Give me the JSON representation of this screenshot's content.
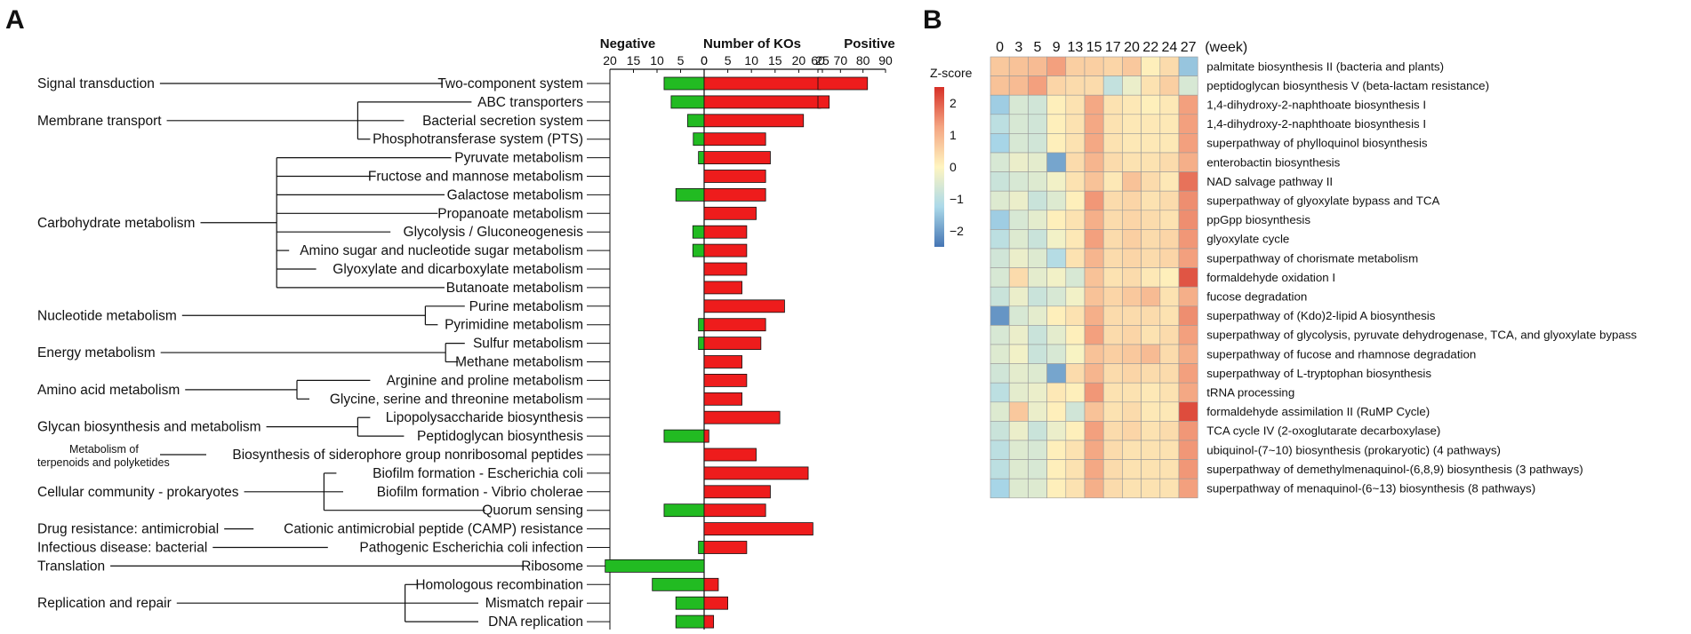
{
  "panel_a": {
    "letter": "A",
    "negative_label": "Negative",
    "middle_label": "Number of KOs",
    "positive_label": "Positive",
    "colors": {
      "negative": "#22bb22",
      "positive": "#ee1c1c",
      "negative_text": "#2aa52a",
      "positive_text": "#dd1111"
    }
  },
  "panel_b": {
    "letter": "B",
    "scale_title": "Z-score",
    "week_label": "(week)"
  },
  "chart_data": [
    {
      "type": "bar",
      "title": "Number of KOs",
      "orientation": "horizontal",
      "negative_axis": {
        "ticks": [
          "20",
          "15",
          "10",
          "5",
          "0"
        ],
        "range": [
          20,
          0
        ]
      },
      "positive_axis": {
        "ticks": [
          "0",
          "5",
          "10",
          "15",
          "20",
          "25"
        ],
        "range": [
          0,
          25
        ]
      },
      "positive_broken_axis": {
        "ticks": [
          "60",
          "70",
          "80",
          "90"
        ],
        "range": [
          60,
          90
        ]
      },
      "categories": [
        {
          "group": "Signal transduction",
          "name": "Two-component system",
          "negative": 8.5,
          "positive": 82
        },
        {
          "group": "Membrane transport",
          "name": "ABC transporters",
          "negative": 7,
          "positive": 65
        },
        {
          "group": "Membrane transport",
          "name": "Bacterial secretion system",
          "negative": 3.5,
          "positive": 21
        },
        {
          "group": "Membrane transport",
          "name": "Phosphotransferase system (PTS)",
          "negative": 2.3,
          "positive": 13
        },
        {
          "group": "Carbohydrate metabolism",
          "name": "Pyruvate metabolism",
          "negative": 1.2,
          "positive": 14
        },
        {
          "group": "Carbohydrate metabolism",
          "name": "Fructose and mannose metabolism",
          "negative": 0,
          "positive": 13
        },
        {
          "group": "Carbohydrate metabolism",
          "name": "Galactose metabolism",
          "negative": 6,
          "positive": 13
        },
        {
          "group": "Carbohydrate metabolism",
          "name": "Propanoate metabolism",
          "negative": 0,
          "positive": 11
        },
        {
          "group": "Carbohydrate metabolism",
          "name": "Glycolysis / Gluconeogenesis",
          "negative": 2.4,
          "positive": 9
        },
        {
          "group": "Carbohydrate metabolism",
          "name": "Amino sugar and nucleotide sugar metabolism",
          "negative": 2.4,
          "positive": 9
        },
        {
          "group": "Carbohydrate metabolism",
          "name": "Glyoxylate and dicarboxylate metabolism",
          "negative": 0,
          "positive": 9
        },
        {
          "group": "Carbohydrate metabolism",
          "name": "Butanoate metabolism",
          "negative": 0,
          "positive": 8
        },
        {
          "group": "Nucleotide metabolism",
          "name": "Purine metabolism",
          "negative": 0,
          "positive": 17
        },
        {
          "group": "Nucleotide metabolism",
          "name": "Pyrimidine metabolism",
          "negative": 1.2,
          "positive": 13
        },
        {
          "group": "Energy metabolism",
          "name": "Sulfur metabolism",
          "negative": 1.2,
          "positive": 12
        },
        {
          "group": "Energy metabolism",
          "name": "Methane metabolism",
          "negative": 0,
          "positive": 8
        },
        {
          "group": "Amino acid metabolism",
          "name": "Arginine and proline metabolism",
          "negative": 0,
          "positive": 9
        },
        {
          "group": "Amino acid metabolism",
          "name": "Glycine, serine and threonine metabolism",
          "negative": 0,
          "positive": 8
        },
        {
          "group": "Glycan biosynthesis and metabolism",
          "name": "Lipopolysaccharide biosynthesis",
          "negative": 0,
          "positive": 16
        },
        {
          "group": "Glycan biosynthesis and metabolism",
          "name": "Peptidoglycan biosynthesis",
          "negative": 8.5,
          "positive": 1
        },
        {
          "group": "Metabolism of terpenoids and polyketides",
          "name": "Biosynthesis of siderophore group nonribosomal peptides",
          "negative": 0,
          "positive": 11
        },
        {
          "group": "Cellular community - prokaryotes",
          "name": "Biofilm formation - Escherichia coli",
          "negative": 0,
          "positive": 22
        },
        {
          "group": "Cellular community - prokaryotes",
          "name": "Biofilm formation - Vibrio cholerae",
          "negative": 0,
          "positive": 14
        },
        {
          "group": "Cellular community - prokaryotes",
          "name": "Quorum sensing",
          "negative": 8.5,
          "positive": 13
        },
        {
          "group": "Drug resistance: antimicrobial",
          "name": "Cationic antimicrobial peptide (CAMP) resistance",
          "negative": 0,
          "positive": 23
        },
        {
          "group": "Infectious disease: bacterial",
          "name": "Pathogenic Escherichia coli infection",
          "negative": 1.2,
          "positive": 9
        },
        {
          "group": "Translation",
          "name": "Ribosome",
          "negative": 21,
          "positive": 0
        },
        {
          "group": "Replication and repair",
          "name": "Homologous recombination",
          "negative": 11,
          "positive": 3
        },
        {
          "group": "Replication and repair",
          "name": "Mismatch repair",
          "negative": 6,
          "positive": 5
        },
        {
          "group": "Replication and repair",
          "name": "DNA replication",
          "negative": 6,
          "positive": 2
        }
      ],
      "groups": [
        {
          "label": "Signal transduction",
          "rows": [
            0
          ]
        },
        {
          "label": "Membrane transport",
          "rows": [
            1,
            2,
            3
          ]
        },
        {
          "label": "Carbohydrate metabolism",
          "rows": [
            4,
            5,
            6,
            7,
            8,
            9,
            10,
            11
          ]
        },
        {
          "label": "Nucleotide metabolism",
          "rows": [
            12,
            13
          ]
        },
        {
          "label": "Energy metabolism",
          "rows": [
            14,
            15
          ]
        },
        {
          "label": "Amino acid metabolism",
          "rows": [
            16,
            17
          ]
        },
        {
          "label": "Glycan biosynthesis and metabolism",
          "rows": [
            18,
            19
          ]
        },
        {
          "label": "Metabolism of\nterpenoids and polyketides",
          "rows": [
            20
          ]
        },
        {
          "label": "Cellular community - prokaryotes",
          "rows": [
            21,
            22,
            23
          ]
        },
        {
          "label": "Drug resistance: antimicrobial",
          "rows": [
            24
          ]
        },
        {
          "label": "Infectious disease: bacterial",
          "rows": [
            25
          ]
        },
        {
          "label": "Translation",
          "rows": [
            26
          ]
        },
        {
          "label": "Replication and repair",
          "rows": [
            27,
            28,
            29
          ]
        }
      ]
    },
    {
      "type": "heatmap",
      "x": [
        "0",
        "3",
        "5",
        "9",
        "13",
        "15",
        "17",
        "20",
        "22",
        "24",
        "27"
      ],
      "xlabel": "(week)",
      "colorbar": {
        "title": "Z-score",
        "ticks": [
          "2",
          "1",
          "0",
          "−1",
          "−2"
        ],
        "range": [
          -2.5,
          2.5
        ]
      },
      "rows": [
        {
          "name": "palmitate biosynthesis II (bacteria and plants)",
          "values": [
            0.7,
            0.8,
            0.9,
            1.3,
            0.6,
            0.6,
            0.5,
            0.7,
            0.1,
            0.4,
            -1.5
          ]
        },
        {
          "name": "peptidoglycan biosynthesis V (beta-lactam resistance)",
          "values": [
            0.8,
            0.9,
            1.3,
            0.5,
            0.4,
            0.4,
            -0.9,
            -0.3,
            0.3,
            0.6,
            -0.6
          ]
        },
        {
          "name": "1,4-dihydroxy-2-naphthoate biosynthesis I",
          "values": [
            -1.4,
            -0.6,
            -0.7,
            0.1,
            0.3,
            1.2,
            0.3,
            0.2,
            0.1,
            0.2,
            1.3
          ]
        },
        {
          "name": "1,4-dihydroxy-2-naphthoate biosynthesis I",
          "values": [
            -1.0,
            -0.6,
            -0.7,
            0.1,
            0.3,
            1.2,
            0.3,
            0.2,
            0.2,
            0.2,
            1.3
          ]
        },
        {
          "name": "superpathway of phylloquinol biosynthesis",
          "values": [
            -1.3,
            -0.6,
            -0.7,
            0.1,
            0.3,
            1.2,
            0.3,
            0.2,
            0.2,
            0.2,
            1.3
          ]
        },
        {
          "name": "enterobactin biosynthesis",
          "values": [
            -0.6,
            -0.3,
            -0.4,
            -1.9,
            0.4,
            1.0,
            0.4,
            0.3,
            0.3,
            0.4,
            1.1
          ]
        },
        {
          "name": "NAD salvage pathway II",
          "values": [
            -0.8,
            -0.6,
            -0.5,
            -0.2,
            0.3,
            0.8,
            0.2,
            0.8,
            0.4,
            0.2,
            1.8
          ]
        },
        {
          "name": "superpathway of glyoxylate bypass and TCA",
          "values": [
            -0.5,
            -0.3,
            -0.8,
            -0.5,
            0.1,
            1.4,
            0.4,
            0.5,
            0.3,
            0.4,
            1.5
          ]
        },
        {
          "name": "ppGpp biosynthesis",
          "values": [
            -1.4,
            -0.6,
            -0.4,
            0.1,
            0.3,
            1.1,
            0.4,
            0.5,
            0.4,
            0.3,
            1.5
          ]
        },
        {
          "name": "glyoxylate cycle",
          "values": [
            -1.0,
            -0.5,
            -0.8,
            -0.2,
            0.2,
            1.3,
            0.4,
            0.6,
            0.4,
            0.5,
            1.4
          ]
        },
        {
          "name": "superpathway of chorismate metabolism",
          "values": [
            -0.7,
            -0.3,
            -0.5,
            -1.1,
            0.3,
            1.0,
            0.4,
            0.5,
            0.4,
            0.5,
            1.3
          ]
        },
        {
          "name": "formaldehyde oxidation I",
          "values": [
            -0.6,
            0.4,
            -0.4,
            -0.2,
            -0.6,
            0.8,
            0.3,
            0.4,
            0.2,
            0.1,
            2.1
          ]
        },
        {
          "name": "fucose degradation",
          "values": [
            -0.8,
            -0.3,
            -0.8,
            -0.6,
            -0.2,
            0.8,
            0.5,
            0.7,
            0.9,
            0.3,
            1.1
          ]
        },
        {
          "name": "superpathway of (Kdo)2-lipid A biosynthesis",
          "values": [
            -2.1,
            -0.6,
            -0.4,
            0.1,
            0.3,
            1.1,
            0.4,
            0.4,
            0.4,
            0.3,
            1.5
          ]
        },
        {
          "name": "superpathway of glycolysis, pyruvate dehydrogenase, TCA, and glyoxylate bypass",
          "values": [
            -0.6,
            -0.3,
            -0.8,
            -0.4,
            0.1,
            1.3,
            0.4,
            0.5,
            0.3,
            0.4,
            1.3
          ]
        },
        {
          "name": "superpathway of fucose and rhamnose degradation",
          "values": [
            -0.5,
            -0.2,
            -0.8,
            -0.6,
            -0.1,
            0.8,
            0.6,
            0.7,
            0.9,
            0.4,
            1.1
          ]
        },
        {
          "name": "superpathway of L-tryptophan biosynthesis",
          "values": [
            -0.7,
            -0.4,
            -0.5,
            -1.9,
            0.4,
            1.0,
            0.4,
            0.5,
            0.4,
            0.4,
            1.3
          ]
        },
        {
          "name": "tRNA processing",
          "values": [
            -1.0,
            -0.4,
            -0.3,
            0.2,
            0.1,
            1.4,
            0.3,
            0.3,
            0.2,
            0.3,
            1.2
          ]
        },
        {
          "name": "formaldehyde assimilation II (RuMP Cycle)",
          "values": [
            -0.5,
            0.7,
            -0.3,
            0.1,
            -0.7,
            0.8,
            0.3,
            0.4,
            0.2,
            0.2,
            2.2
          ]
        },
        {
          "name": "TCA cycle IV (2-oxoglutarate decarboxylase)",
          "values": [
            -0.8,
            -0.3,
            -0.8,
            -0.3,
            0.1,
            1.3,
            0.4,
            0.5,
            0.3,
            0.4,
            1.4
          ]
        },
        {
          "name": "ubiquinol-(7~10) biosynthesis (prokaryotic) (4 pathways)",
          "values": [
            -1.0,
            -0.5,
            -0.6,
            0.1,
            0.3,
            1.2,
            0.4,
            0.3,
            0.3,
            0.3,
            1.4
          ]
        },
        {
          "name": "superpathway of demethylmenaquinol-(6,8,9) biosynthesis (3 pathways)",
          "values": [
            -1.0,
            -0.5,
            -0.6,
            0.1,
            0.3,
            1.2,
            0.4,
            0.3,
            0.3,
            0.3,
            1.4
          ]
        },
        {
          "name": "superpathway of menaquinol-(6~13) biosynthesis (8 pathways)",
          "values": [
            -1.3,
            -0.5,
            -0.5,
            0.1,
            0.3,
            1.1,
            0.4,
            0.3,
            0.3,
            0.3,
            1.3
          ]
        }
      ]
    }
  ]
}
